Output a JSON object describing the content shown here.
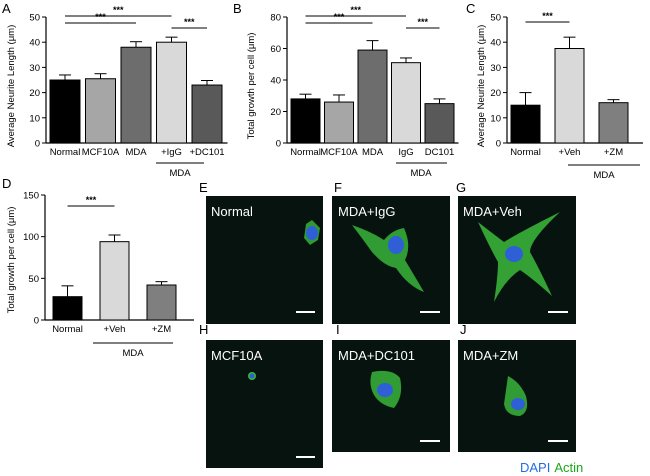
{
  "panels": {
    "A": {
      "panel_label": "A",
      "chart_data": {
        "type": "bar",
        "ylabel": "Average Neurite Length (μm)",
        "ylim": [
          0,
          50
        ],
        "yticks": [
          "0",
          "10",
          "20",
          "30",
          "40",
          "50"
        ],
        "categories": [
          "Normal",
          "MCF10A",
          "MDA",
          "+IgG",
          "+DC101"
        ],
        "values": [
          25,
          25.5,
          38,
          40,
          23
        ],
        "errors": [
          2,
          2,
          2.2,
          2,
          1.8
        ],
        "bar_colors": [
          "#000000",
          "#a6a6a6",
          "#6d6d6d",
          "#d9d9d9",
          "#595959"
        ],
        "group_label": "MDA",
        "significance": "***"
      }
    },
    "B": {
      "panel_label": "B",
      "chart_data": {
        "type": "bar",
        "ylabel": "Total growth per cell (μm)",
        "ylim": [
          0,
          80
        ],
        "yticks": [
          "0",
          "20",
          "40",
          "60",
          "80"
        ],
        "categories": [
          "Normal",
          "MCF10A",
          "MDA",
          "IgG",
          "DC101"
        ],
        "values": [
          28,
          26,
          59,
          51,
          25
        ],
        "errors": [
          3,
          4.5,
          6,
          3,
          3
        ],
        "bar_colors": [
          "#000000",
          "#a6a6a6",
          "#6d6d6d",
          "#d9d9d9",
          "#595959"
        ],
        "group_label": "MDA",
        "significance": "***"
      }
    },
    "C": {
      "panel_label": "C",
      "chart_data": {
        "type": "bar",
        "ylabel": "Average Neurite Length (μm)",
        "ylim": [
          0,
          50
        ],
        "yticks": [
          "0",
          "10",
          "20",
          "30",
          "40",
          "50"
        ],
        "categories": [
          "Normal",
          "+Veh",
          "+ZM"
        ],
        "values": [
          15,
          37.5,
          16
        ],
        "errors": [
          5,
          4.5,
          1.2
        ],
        "bar_colors": [
          "#000000",
          "#d9d9d9",
          "#7f7f7f"
        ],
        "group_label": "MDA",
        "significance": "***"
      }
    },
    "D": {
      "panel_label": "D",
      "chart_data": {
        "type": "bar",
        "ylabel": "Total growth per cell (μm)",
        "ylim": [
          0,
          150
        ],
        "yticks": [
          "0",
          "50",
          "100",
          "150"
        ],
        "categories": [
          "Normal",
          "+Veh",
          "+ZM"
        ],
        "values": [
          28,
          94,
          42
        ],
        "errors": [
          13,
          8,
          4
        ],
        "bar_colors": [
          "#000000",
          "#d9d9d9",
          "#7f7f7f"
        ],
        "group_label": "MDA",
        "significance": "***"
      }
    }
  },
  "images": [
    {
      "id": "E",
      "panel_label": "E",
      "title": "Normal"
    },
    {
      "id": "F",
      "panel_label": "F",
      "title": "MDA+IgG"
    },
    {
      "id": "G",
      "panel_label": "G",
      "title": "MDA+Veh"
    },
    {
      "id": "H",
      "panel_label": "H",
      "title": "MCF10A"
    },
    {
      "id": "I",
      "panel_label": "I",
      "title": "MDA+DC101"
    },
    {
      "id": "J",
      "panel_label": "J",
      "title": "MDA+ZM"
    }
  ],
  "legend": {
    "dapi": "DAPI",
    "actin": "Actin",
    "dapi_color": "#1f6fe0",
    "actin_color": "#1aa81a"
  },
  "colors": {
    "micrograph_bg": "#06130f",
    "cell_green": "#3ab53a",
    "nucleus_blue": "#2e5fd6",
    "scale_bar": "#ffffff"
  }
}
